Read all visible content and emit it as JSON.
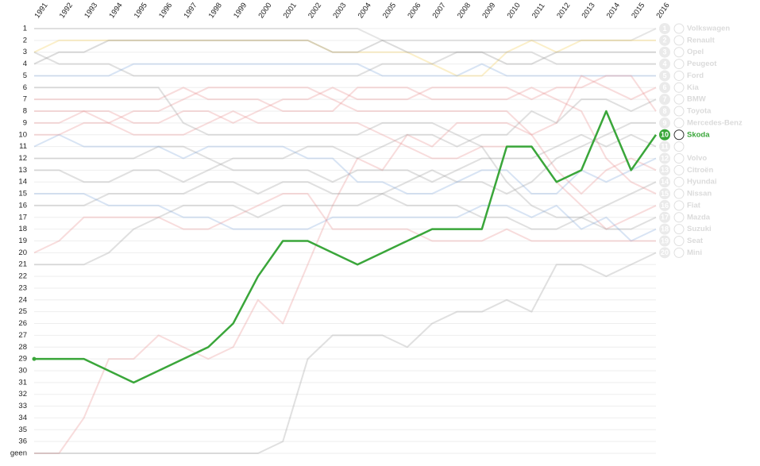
{
  "chart_data": {
    "type": "bump",
    "categories": [
      "1991",
      "1992",
      "1993",
      "1994",
      "1995",
      "1996",
      "1997",
      "1998",
      "1999",
      "2000",
      "2001",
      "2002",
      "2003",
      "2004",
      "2005",
      "2006",
      "2007",
      "2008",
      "2009",
      "2010",
      "2011",
      "2012",
      "2013",
      "2014",
      "2015",
      "2016"
    ],
    "ylim": [
      1,
      37
    ],
    "yticks": [
      1,
      2,
      3,
      4,
      5,
      6,
      7,
      8,
      9,
      10,
      11,
      12,
      13,
      14,
      15,
      16,
      17,
      18,
      19,
      20,
      21,
      22,
      23,
      24,
      25,
      26,
      27,
      28,
      29,
      30,
      31,
      32,
      33,
      34,
      35,
      36,
      {
        "value": 37,
        "label": "geen"
      }
    ],
    "grid": true,
    "highlight": 9,
    "series": [
      {
        "name": "Volkswagen",
        "color": "#aaaaaa",
        "values": [
          1,
          1,
          1,
          1,
          1,
          1,
          1,
          1,
          1,
          1,
          1,
          1,
          1,
          1,
          2,
          2,
          2,
          2,
          2,
          2,
          2,
          2,
          2,
          2,
          2,
          1
        ]
      },
      {
        "name": "Renault",
        "color": "#f2c94c",
        "values": [
          3,
          2,
          2,
          2,
          2,
          2,
          2,
          2,
          2,
          2,
          2,
          2,
          3,
          3,
          3,
          3,
          4,
          5,
          5,
          3,
          2,
          3,
          2,
          2,
          2,
          2
        ]
      },
      {
        "name": "Opel",
        "color": "#888888",
        "values": [
          4,
          3,
          3,
          2,
          2,
          2,
          2,
          2,
          2,
          2,
          2,
          2,
          3,
          3,
          2,
          3,
          3,
          3,
          3,
          4,
          4,
          3,
          3,
          3,
          3,
          3
        ]
      },
      {
        "name": "Peugeot",
        "color": "#999999",
        "values": [
          3,
          4,
          4,
          4,
          5,
          5,
          5,
          5,
          5,
          5,
          5,
          5,
          5,
          5,
          4,
          4,
          4,
          3,
          3,
          3,
          3,
          4,
          4,
          4,
          4,
          4
        ]
      },
      {
        "name": "Ford",
        "color": "#7fa7d9",
        "values": [
          5,
          5,
          5,
          5,
          4,
          4,
          4,
          4,
          4,
          4,
          4,
          4,
          4,
          4,
          5,
          5,
          5,
          5,
          4,
          5,
          5,
          5,
          5,
          5,
          5,
          5
        ]
      },
      {
        "name": "Kia",
        "color": "#e88a8a",
        "values": [
          37,
          37,
          34,
          29,
          29,
          27,
          28,
          29,
          28,
          24,
          26,
          21,
          16,
          12,
          13,
          10,
          11,
          9,
          9,
          9,
          10,
          9,
          5,
          6,
          7,
          6
        ]
      },
      {
        "name": "BMW",
        "color": "#999999",
        "values": [
          13,
          13,
          14,
          14,
          13,
          13,
          14,
          13,
          12,
          12,
          12,
          11,
          11,
          12,
          11,
          10,
          10,
          11,
          10,
          10,
          8,
          9,
          7,
          7,
          8,
          7
        ]
      },
      {
        "name": "Toyota",
        "color": "#e88a8a",
        "values": [
          9,
          9,
          8,
          8,
          9,
          9,
          8,
          8,
          9,
          8,
          7,
          7,
          6,
          7,
          7,
          7,
          6,
          6,
          6,
          6,
          7,
          6,
          6,
          5,
          5,
          8
        ]
      },
      {
        "name": "Mercedes-Benz",
        "color": "#999999",
        "values": [
          16,
          16,
          16,
          15,
          15,
          15,
          15,
          14,
          14,
          15,
          14,
          14,
          15,
          15,
          15,
          14,
          13,
          14,
          14,
          15,
          14,
          12,
          11,
          10,
          9,
          9
        ]
      },
      {
        "name": "Skoda",
        "color": "#3aa63a",
        "values": [
          29,
          29,
          29,
          30,
          31,
          30,
          29,
          28,
          26,
          22,
          19,
          19,
          20,
          21,
          20,
          19,
          18,
          18,
          18,
          11,
          11,
          14,
          13,
          8,
          13,
          10
        ]
      },
      {
        "name": null,
        "color": "#999999",
        "values": [
          12,
          12,
          12,
          12,
          12,
          11,
          11,
          12,
          13,
          13,
          13,
          13,
          14,
          13,
          13,
          13,
          14,
          13,
          12,
          12,
          12,
          11,
          10,
          11,
          10,
          11
        ]
      },
      {
        "name": "Volvo",
        "color": "#7fa7d9",
        "values": [
          11,
          10,
          11,
          11,
          11,
          11,
          12,
          11,
          11,
          11,
          11,
          12,
          12,
          14,
          14,
          15,
          15,
          14,
          13,
          13,
          15,
          15,
          13,
          14,
          13,
          12
        ]
      },
      {
        "name": "Citroën",
        "color": "#e88a8a",
        "values": [
          10,
          10,
          9,
          9,
          8,
          8,
          7,
          6,
          6,
          6,
          6,
          6,
          7,
          8,
          8,
          8,
          8,
          8,
          8,
          8,
          10,
          13,
          15,
          13,
          12,
          13
        ]
      },
      {
        "name": "Hyundai",
        "color": "#999999",
        "values": [
          21,
          21,
          21,
          20,
          18,
          17,
          16,
          16,
          16,
          17,
          16,
          16,
          16,
          16,
          15,
          16,
          16,
          16,
          17,
          17,
          18,
          18,
          17,
          16,
          15,
          14
        ]
      },
      {
        "name": "Nissan",
        "color": "#e88a8a",
        "values": [
          7,
          7,
          7,
          7,
          7,
          7,
          6,
          7,
          7,
          7,
          8,
          8,
          8,
          6,
          6,
          6,
          7,
          7,
          7,
          7,
          6,
          7,
          8,
          12,
          14,
          15
        ]
      },
      {
        "name": "Fiat",
        "color": "#e88a8a",
        "values": [
          8,
          8,
          8,
          9,
          10,
          10,
          10,
          9,
          8,
          9,
          9,
          9,
          9,
          9,
          10,
          11,
          12,
          12,
          11,
          11,
          11,
          14,
          16,
          18,
          17,
          16
        ]
      },
      {
        "name": "Mazda",
        "color": "#999999",
        "values": [
          6,
          6,
          6,
          6,
          6,
          6,
          9,
          10,
          10,
          10,
          10,
          10,
          10,
          10,
          9,
          9,
          9,
          10,
          11,
          14,
          16,
          17,
          17,
          18,
          18,
          17
        ]
      },
      {
        "name": "Suzuki",
        "color": "#7fa7d9",
        "values": [
          15,
          15,
          15,
          16,
          16,
          16,
          17,
          17,
          18,
          18,
          18,
          18,
          17,
          17,
          17,
          17,
          17,
          17,
          16,
          16,
          17,
          16,
          18,
          17,
          19,
          18
        ]
      },
      {
        "name": "Seat",
        "color": "#e88a8a",
        "values": [
          20,
          19,
          17,
          17,
          17,
          17,
          18,
          18,
          17,
          16,
          15,
          15,
          18,
          18,
          18,
          18,
          19,
          19,
          19,
          18,
          19,
          19,
          19,
          19,
          19,
          19
        ]
      },
      {
        "name": "Mini",
        "color": "#999999",
        "values": [
          37,
          37,
          37,
          37,
          37,
          37,
          37,
          37,
          37,
          37,
          36,
          29,
          27,
          27,
          27,
          28,
          26,
          25,
          25,
          24,
          25,
          21,
          21,
          22,
          21,
          20
        ]
      }
    ]
  }
}
